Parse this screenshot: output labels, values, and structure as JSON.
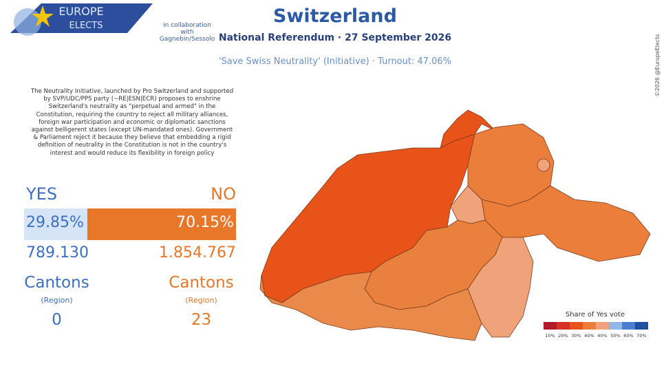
{
  "header": {
    "logo_top": "EUROPE",
    "logo_bottom": "ELECTS",
    "collaboration": "in collaboration\nwith Gagnebin/Sessolo",
    "title": "Switzerland",
    "subtitle": "National Referendum · 27 September 2026",
    "question": "'Save Swiss Neutrality' (Initiative) · Turnout: 47.06%",
    "credit": "©2026 @EuropeElects"
  },
  "description": "The Neutrality Initiative, launched by Pro Switzerland and supported by SVP/UDC/PPS party (~RE|ESN|ECR) proposes to enshrine Switzerland's neutrality as \"perpetual and armed\" in the Constitution, requiring the country to reject all military alliances, foreign war participation and economic or diplomatic sanctions against belligerent states (except UN-mandated ones). Government & Parliament reject it because they believe that embedding a rigid definition of neutrality in the Constitution is not in the country's interest and would reduce its flexibility in foreign policy",
  "results": {
    "yes": {
      "label": "YES",
      "share": {
        "value": 29.85,
        "label": "29.85%"
      },
      "votes": "789.130",
      "cantons_label": "Cantons",
      "region_label": "(Region)",
      "cantons": "0"
    },
    "no": {
      "label": "NO",
      "share": {
        "value": 70.15,
        "label": "70.15%"
      },
      "votes": "1.854.767",
      "cantons_label": "Cantons",
      "region_label": "(Region)",
      "cantons": "23"
    }
  },
  "legend": {
    "title": "Share of Yes vote",
    "labels": [
      "10%",
      "20%",
      "30%",
      "40%",
      "40%",
      "50%",
      "60%",
      "70%"
    ]
  }
}
